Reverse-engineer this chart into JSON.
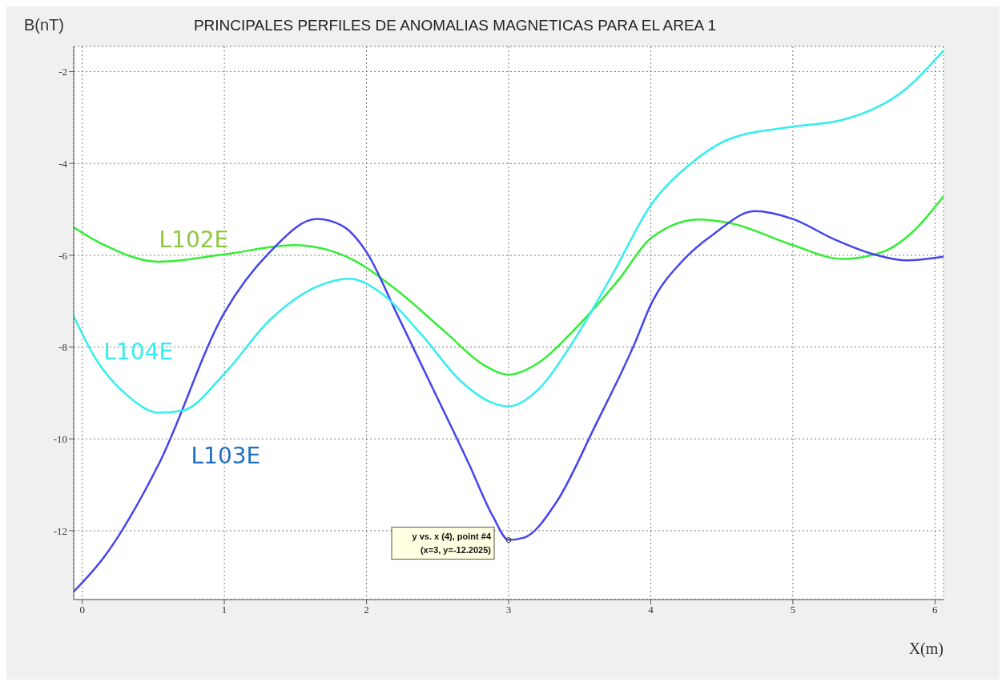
{
  "chart_data": {
    "type": "line",
    "title": "PRINCIPALES PERFILES DE ANOMALIAS MAGNETICAS PARA EL AREA 1",
    "xlabel": "X(m)",
    "ylabel": "B(nT)",
    "xlim": [
      -0.06,
      6.06
    ],
    "xticks": [
      0,
      1,
      2,
      3,
      4,
      5,
      6
    ],
    "ylim": [
      -13.5,
      -1.45
    ],
    "yticks": [
      -12,
      -10,
      -8,
      -6,
      -4,
      -2
    ],
    "grid": true,
    "marker": "none",
    "line_style": "solid",
    "series": [
      {
        "name": "L102E",
        "color": "#33ee33",
        "x": [
          -0.06,
          0.15,
          0.54,
          1.0,
          1.49,
          1.88,
          2.21,
          2.55,
          2.83,
          3.0,
          3.22,
          3.45,
          3.78,
          4.0,
          4.34,
          4.56,
          5.0,
          5.35,
          5.63,
          5.85,
          6.06
        ],
        "values": [
          -5.39,
          -5.77,
          -6.14,
          -5.98,
          -5.78,
          -6.06,
          -6.75,
          -7.66,
          -8.4,
          -8.6,
          -8.32,
          -7.66,
          -6.51,
          -5.63,
          -5.22,
          -5.3,
          -5.78,
          -6.08,
          -5.93,
          -5.47,
          -4.71
        ]
      },
      {
        "name": "L103E",
        "color": "#4444ee",
        "x": [
          -0.06,
          0.15,
          0.54,
          1.0,
          1.32,
          1.65,
          1.83,
          2.0,
          2.21,
          2.44,
          2.72,
          2.89,
          3.0,
          3.11,
          3.34,
          3.61,
          3.89,
          4.0,
          4.23,
          4.45,
          4.73,
          5.0,
          5.29,
          5.57,
          5.79,
          6.06
        ],
        "values": [
          -13.33,
          -12.59,
          -10.54,
          -7.25,
          -5.93,
          -5.21,
          -5.36,
          -5.93,
          -7.25,
          -8.73,
          -10.54,
          -11.69,
          -12.2,
          -12.15,
          -11.36,
          -9.71,
          -7.9,
          -7.08,
          -6.1,
          -5.52,
          -5.04,
          -5.21,
          -5.65,
          -5.98,
          -6.11,
          -6.03
        ]
      },
      {
        "name": "L104E",
        "color": "#33eeee",
        "x": [
          -0.06,
          0.09,
          0.32,
          0.54,
          0.71,
          1.0,
          1.32,
          1.66,
          1.88,
          2.11,
          2.39,
          2.66,
          2.89,
          3.0,
          3.22,
          3.45,
          3.73,
          4.0,
          4.28,
          4.56,
          5.0,
          5.35,
          5.57,
          5.79,
          6.06
        ],
        "values": [
          -7.33,
          -8.23,
          -9.06,
          -9.43,
          -9.38,
          -8.58,
          -7.41,
          -6.67,
          -6.51,
          -6.84,
          -7.74,
          -8.73,
          -9.22,
          -9.29,
          -8.89,
          -7.9,
          -6.42,
          -4.91,
          -4.01,
          -3.46,
          -3.2,
          -3.05,
          -2.81,
          -2.39,
          -1.54
        ]
      }
    ],
    "annotations": [
      {
        "text": "y vs. x (4), point #4\n(x=3, y=-12.2025)",
        "x": 3,
        "y": -12.2025
      }
    ]
  }
}
